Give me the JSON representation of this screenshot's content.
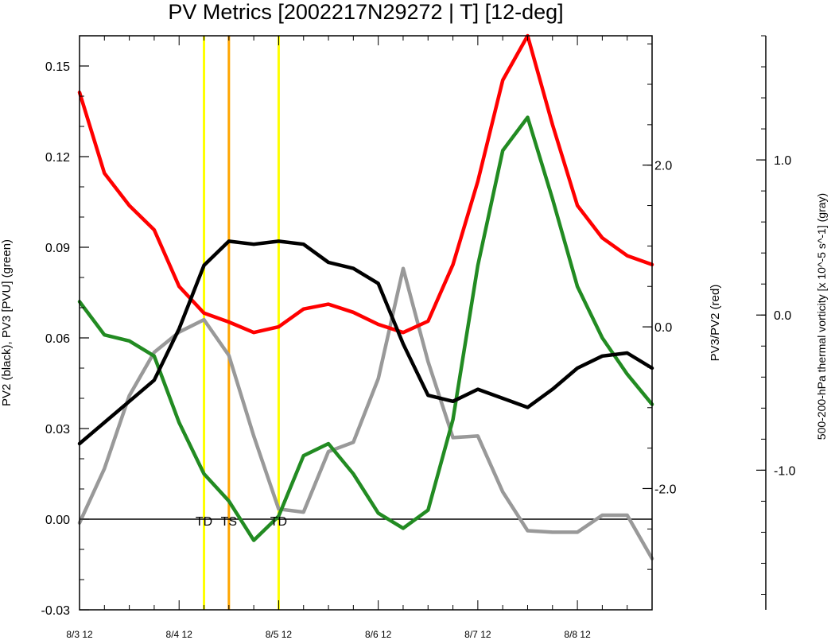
{
  "chart_data": {
    "type": "line",
    "title": "PV Metrics [2002217N29272 | T] [12-deg]",
    "x_tick_labels": [
      "8/3 12",
      "8/4 12",
      "8/5 12",
      "8/6 12",
      "8/7 12",
      "8/8 12"
    ],
    "x_step_hours": 6,
    "x_range_steps": [
      0,
      23
    ],
    "axes": {
      "left": {
        "label": "PV2 (black), PV3 [PVU] (green)",
        "range": [
          -0.03,
          0.16
        ],
        "major_ticks": [
          -0.03,
          0.0,
          0.03,
          0.06,
          0.09,
          0.12,
          0.15
        ],
        "tick_labels": [
          "-0.03",
          "0.00",
          "0.03",
          "0.06",
          "0.09",
          "0.12",
          "0.15"
        ],
        "minor_step": 0.01
      },
      "right1": {
        "label": "PV3/PV2 (red)",
        "range": [
          -3.5,
          3.6
        ],
        "major_ticks": [
          -2.0,
          0.0,
          2.0
        ],
        "tick_labels": [
          "-2.0",
          "0.0",
          "2.0"
        ],
        "minor_step": 0.5
      },
      "right2": {
        "label": "500-200-hPa thermal vorticity [x 10^-5 s^-1] (gray)",
        "range": [
          -1.9,
          1.8
        ],
        "major_ticks": [
          -1.0,
          0.0,
          1.0
        ],
        "tick_labels": [
          "-1.0",
          "0.0",
          "1.0"
        ],
        "minor_step": 0.2
      }
    },
    "series": [
      {
        "color": "#000000",
        "axis": "left",
        "values": [
          0.025,
          0.032,
          0.039,
          0.046,
          0.063,
          0.084,
          0.092,
          0.091,
          0.092,
          0.091,
          0.085,
          0.083,
          0.078,
          0.058,
          0.041,
          0.039,
          0.043,
          0.04,
          0.037,
          0.043,
          0.05,
          0.054,
          0.055,
          0.05
        ]
      },
      {
        "color": "#228b22",
        "axis": "left",
        "values": [
          0.072,
          0.061,
          0.059,
          0.054,
          0.032,
          0.015,
          0.006,
          -0.007,
          0.001,
          0.021,
          0.025,
          0.015,
          0.002,
          -0.003,
          0.003,
          0.033,
          0.084,
          0.122,
          0.133,
          0.106,
          0.077,
          0.06,
          0.048,
          0.038
        ]
      },
      {
        "color": "#ff0000",
        "axis": "right1",
        "values": [
          2.9,
          1.9,
          1.5,
          1.2,
          0.5,
          0.17,
          0.06,
          -0.07,
          0.0,
          0.22,
          0.28,
          0.18,
          0.03,
          -0.07,
          0.07,
          0.77,
          1.8,
          3.05,
          3.6,
          2.5,
          1.5,
          1.1,
          0.88,
          0.77
        ]
      },
      {
        "color": "#999999",
        "axis": "right2",
        "values": [
          -1.34,
          -0.99,
          -0.52,
          -0.24,
          -0.11,
          -0.03,
          -0.26,
          -0.78,
          -1.25,
          -1.27,
          -0.88,
          -0.82,
          -0.41,
          0.3,
          -0.3,
          -0.79,
          -0.78,
          -1.14,
          -1.39,
          -1.4,
          -1.4,
          -1.29,
          -1.29,
          -1.57
        ]
      }
    ],
    "reference_lines": [
      {
        "axis": "left",
        "value": 0.0,
        "color": "#000000"
      }
    ],
    "events": [
      {
        "step": 5,
        "label": "TD",
        "color": "#ffff00"
      },
      {
        "step": 6,
        "label": "TS",
        "color": "#ffa500"
      },
      {
        "step": 8,
        "label": "TD",
        "color": "#ffff00"
      }
    ]
  }
}
